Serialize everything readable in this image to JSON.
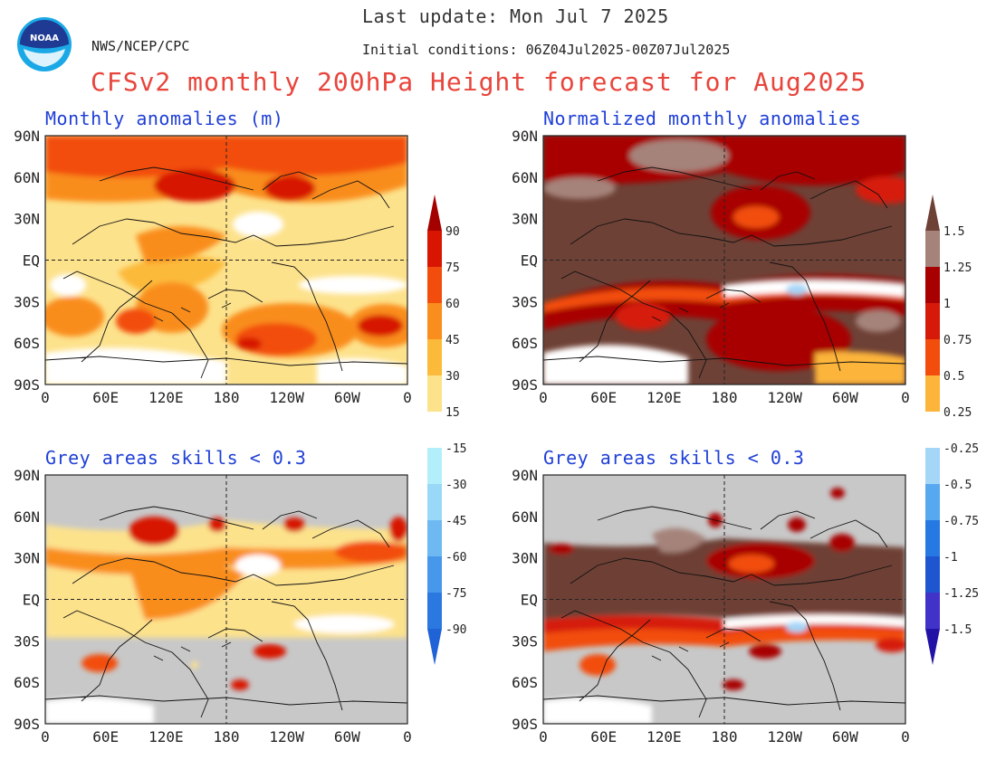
{
  "header": {
    "last_update": "Last update: Mon Jul 7 2025",
    "agency": "NWS/NCEP/CPC",
    "initial_conditions": "Initial conditions: 06Z04Jul2025-00Z07Jul2025",
    "title": "CFSv2 monthly 200hPa Height forecast for Aug2025"
  },
  "logo": {
    "name": "noaa-logo",
    "text": "NOAA"
  },
  "panels": {
    "top_left": {
      "title": "Monthly anomalies (m)"
    },
    "top_right": {
      "title": "Normalized monthly anomalies"
    },
    "bottom_left": {
      "title": "Grey areas skills < 0.3"
    },
    "bottom_right": {
      "title": "Grey areas skills < 0.3"
    }
  },
  "axes": {
    "lat_labels": [
      "90N",
      "60N",
      "30N",
      "EQ",
      "30S",
      "60S",
      "90S"
    ],
    "lon_labels": [
      "0",
      "60E",
      "120E",
      "180",
      "120W",
      "60W",
      "0"
    ]
  },
  "colorbars": {
    "left": {
      "labels": [
        "90",
        "75",
        "60",
        "45",
        "30",
        "15",
        "-15",
        "-30",
        "-45",
        "-60",
        "-75",
        "-90"
      ],
      "colors": [
        "#a50000",
        "#d71500",
        "#f24d0c",
        "#f98d1d",
        "#fcba3a",
        "#fde28c",
        "#ffffff",
        "#b3eefb",
        "#99d8f7",
        "#6fb9f2",
        "#4798ea",
        "#2a78e0",
        "#1f63d6"
      ]
    },
    "right": {
      "labels": [
        "1.5",
        "1.25",
        "1",
        "0.75",
        "0.5",
        "0.25",
        "-0.25",
        "-0.5",
        "-0.75",
        "-1",
        "-1.25",
        "-1.5"
      ],
      "colors": [
        "#6e4136",
        "#a5837a",
        "#a80000",
        "#d61a0a",
        "#f24d0c",
        "#fcb43a",
        "#ffffff",
        "#a4d6f8",
        "#57a9ef",
        "#2679e2",
        "#1e56d0",
        "#4233c8",
        "#2312a6"
      ]
    }
  },
  "colors": {
    "title_red": "#e8453c",
    "panel_title_blue": "#1f3fd6",
    "skill_grey": "#c8c8c8"
  }
}
